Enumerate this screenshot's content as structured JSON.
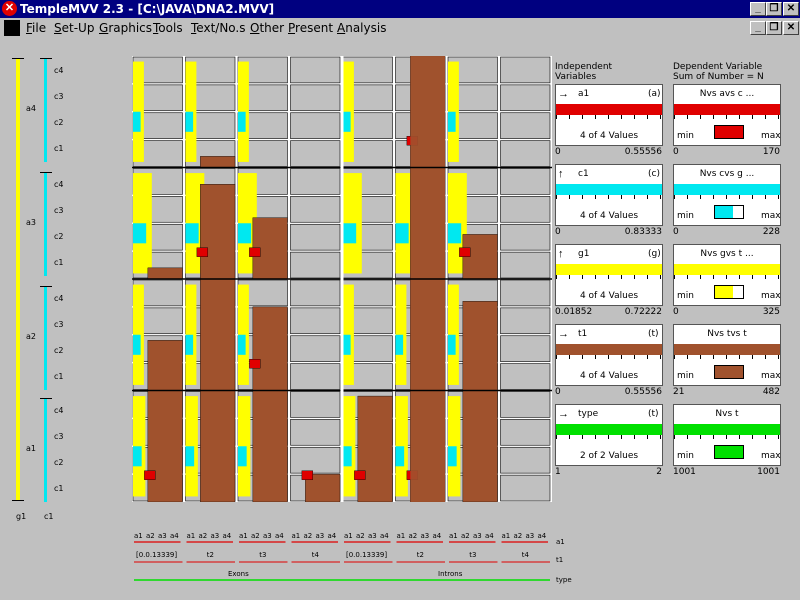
{
  "window": {
    "title": "TempleMVV 2.3 - [C:\\JAVA\\DNA2.MVV]",
    "buttons": [
      "_",
      "❐",
      "✕"
    ],
    "inner_buttons": [
      "_",
      "❐",
      "✕"
    ]
  },
  "menu": [
    {
      "label": "File",
      "u": "F",
      "rest": "ile"
    },
    {
      "label": "Set-Up",
      "u": "S",
      "rest": "et-Up"
    },
    {
      "label": "Graphics",
      "u": "G",
      "rest": "raphics"
    },
    {
      "label": "Tools",
      "u": "T",
      "rest": "ools"
    },
    {
      "label": "Text/No.s",
      "u": "T",
      "rest": "ext/No.s"
    },
    {
      "label": "Other",
      "u": "O",
      "rest": "ther"
    },
    {
      "label": "Present",
      "u": "P",
      "rest": "resent"
    },
    {
      "label": "Analysis",
      "u": "A",
      "rest": "nalysis"
    }
  ],
  "colors": {
    "a1": "#e00000",
    "c1": "#00e8f0",
    "g1": "#ffff00",
    "t1": "#a0522d",
    "type": "#00e000",
    "ruler_yellow": "#ffff00",
    "ruler_cyan": "#00e8f0"
  },
  "left_rulers": {
    "outer_labels": [
      "a4",
      "a3",
      "a2",
      "a1"
    ],
    "inner_labels": [
      "c4",
      "c3",
      "c2",
      "c1"
    ],
    "bottom_labels": [
      "g1",
      "c1"
    ]
  },
  "bottom_axes": {
    "a_ticks": [
      "a1",
      "a2",
      "a3",
      "a4"
    ],
    "t_labels": [
      "[0.0.13339]",
      "t2",
      "t3",
      "t4"
    ],
    "type_labels": [
      "Exons",
      "Introns"
    ],
    "row_labels": [
      "a1",
      "t1",
      "type"
    ]
  },
  "independent": {
    "header1": "Independent",
    "header2": "Variables",
    "panels": [
      {
        "name": "a1",
        "key": "(a)",
        "values": "4 of 4 Values",
        "min": "0",
        "max": "0.55556",
        "arrow": "→",
        "color": "#e00000"
      },
      {
        "name": "c1",
        "key": "(c)",
        "values": "4 of 4 Values",
        "min": "0",
        "max": "0.83333",
        "arrow": "↑",
        "color": "#00e8f0"
      },
      {
        "name": "g1",
        "key": "(g)",
        "values": "4 of 4 Values",
        "min": "0.01852",
        "max": "0.72222",
        "arrow": "↑",
        "color": "#ffff00"
      },
      {
        "name": "t1",
        "key": "(t)",
        "values": "4 of 4 Values",
        "min": "0",
        "max": "0.55556",
        "arrow": "→",
        "color": "#a0522d"
      },
      {
        "name": "type",
        "key": "(t)",
        "values": "2 of 2 Values",
        "min": "1",
        "max": "2",
        "arrow": "→",
        "color": "#00e000"
      }
    ]
  },
  "dependent": {
    "header1": "Dependent Variable",
    "header2": "Sum of Number = N",
    "panels": [
      {
        "name": "Nvs avs c ...",
        "min_label": "min",
        "max_label": "max",
        "min": "0",
        "max": "170",
        "color": "#e00000"
      },
      {
        "name": "Nvs cvs g ...",
        "min_label": "min",
        "max_label": "max",
        "min": "0",
        "max": "228",
        "color": "#00e8f0"
      },
      {
        "name": "Nvs gvs t ...",
        "min_label": "min",
        "max_label": "max",
        "min": "0",
        "max": "325",
        "color": "#ffff00"
      },
      {
        "name": "Nvs tvs t",
        "min_label": "min",
        "max_label": "max",
        "min": "21",
        "max": "482",
        "color": "#a0522d"
      },
      {
        "name": "Nvs t",
        "min_label": "min",
        "max_label": "max",
        "min": "1001",
        "max": "1001",
        "color": "#00e000"
      }
    ]
  },
  "heatmap": {
    "brown_fill": [
      [
        0.03,
        0.7,
        0,
        0,
        0,
        1.0,
        0.1,
        0
      ],
      [
        0.06,
        0.95,
        0.05,
        0,
        0,
        0.92,
        0.98,
        0
      ],
      [
        0.25,
        1.0,
        0.95,
        0,
        0.05,
        1.0,
        1.0,
        0
      ],
      [
        1.0,
        1.0,
        1.0,
        0,
        0,
        1.0,
        1.0,
        0
      ]
    ],
    "brown_fill_bottom": [
      [
        0.0,
        0.1,
        0.0,
        0.0,
        0,
        1.0,
        0.0,
        0
      ],
      [
        0.1,
        0.85,
        0.55,
        0.0,
        0,
        1.0,
        0.4,
        0
      ],
      [
        0.45,
        1.0,
        0.75,
        0.0,
        0.0,
        1.0,
        0.8,
        0.0
      ],
      [
        1.0,
        1.0,
        1.0,
        0.25,
        0.95,
        1.0,
        1.0,
        0.0
      ]
    ]
  }
}
